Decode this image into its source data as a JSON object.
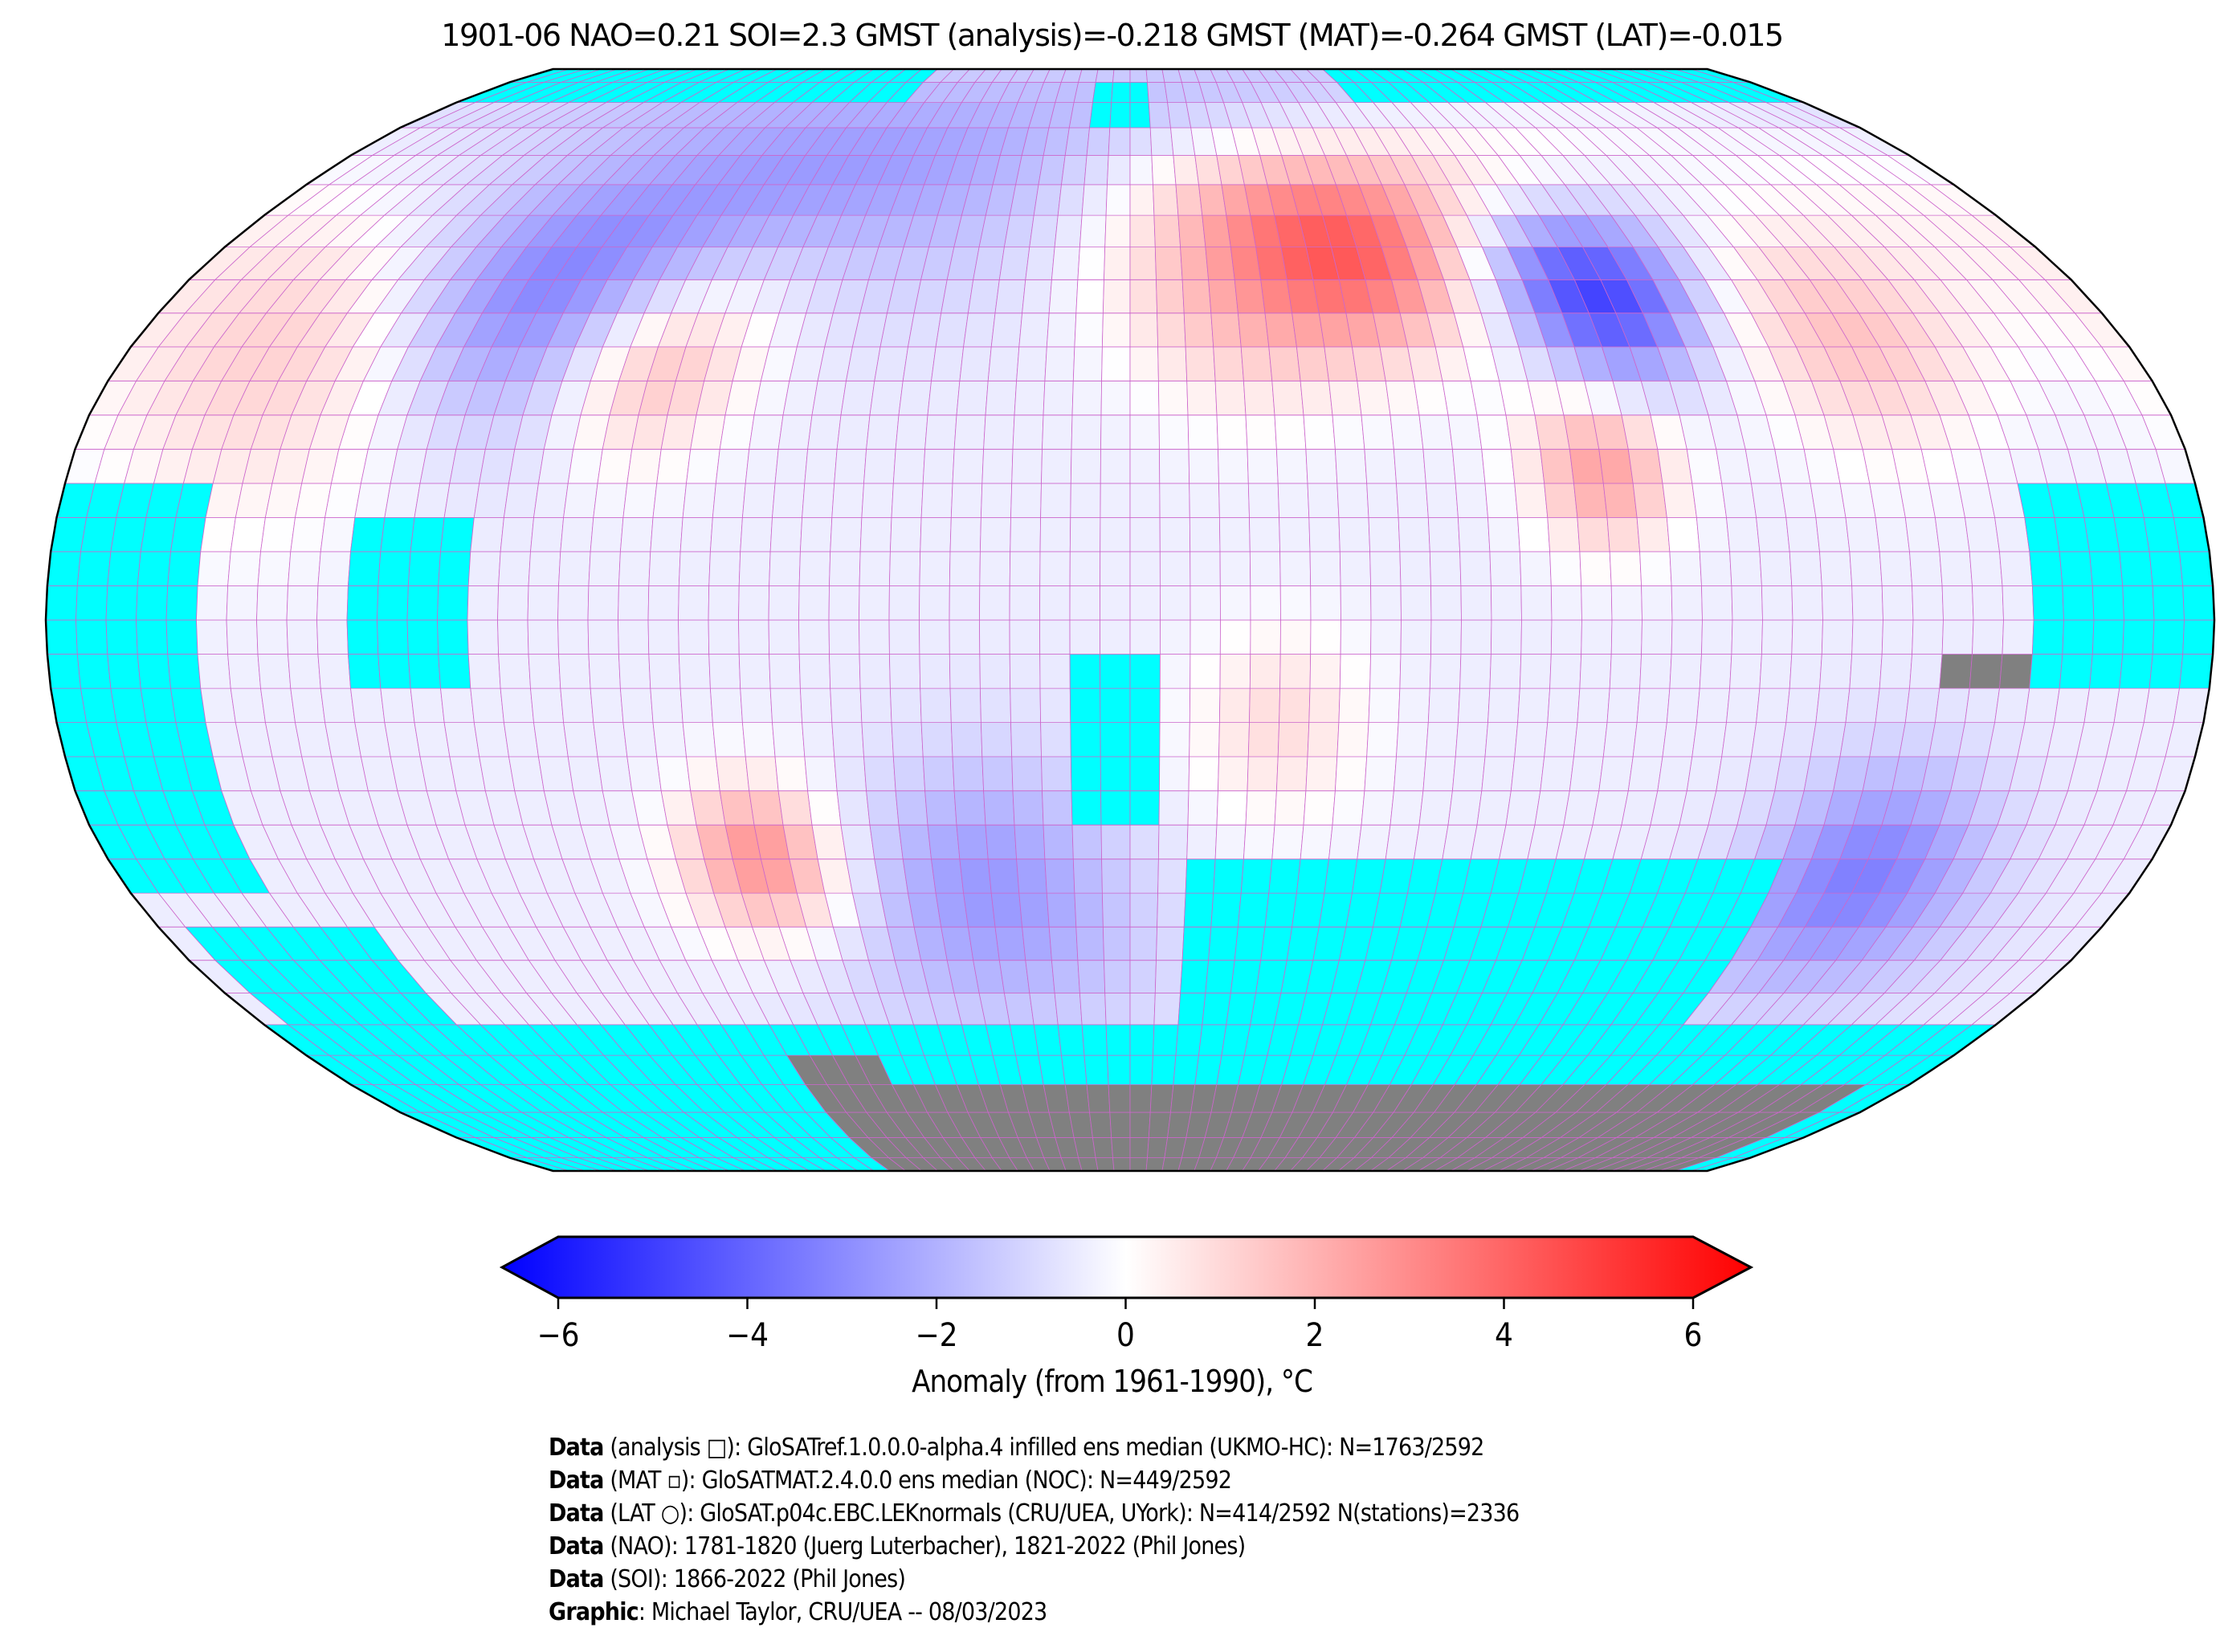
{
  "title": "1901-06 NAO=0.21 SOI=2.3 GMST (analysis)=-0.218 GMST (MAT)=-0.264 GMST (LAT)=-0.015",
  "colorbar": {
    "label": "Anomaly (from 1961-1990), °C",
    "ticks": [
      "−6",
      "−4",
      "−2",
      "0",
      "2",
      "4",
      "6"
    ],
    "range": [
      -6,
      6
    ],
    "colors": {
      "low": "#0000ff",
      "mid": "#ffffff",
      "high": "#ff0000"
    }
  },
  "map": {
    "projection": "Robinson",
    "grid_resolution_deg": 5,
    "missing_color": "#00ffff",
    "land_ice_color": "#808080",
    "gridline_color": "#cc66cc",
    "baseline_anomaly": -0.4,
    "anomaly_centers": [
      {
        "lon": -110,
        "lat": 50,
        "value": -3.2,
        "spread": 14
      },
      {
        "lon": -85,
        "lat": 38,
        "value": 2.2,
        "spread": 10
      },
      {
        "lon": -150,
        "lat": 42,
        "value": 1.6,
        "spread": 18
      },
      {
        "lon": -45,
        "lat": 70,
        "value": -1.6,
        "spread": 16
      },
      {
        "lon": 45,
        "lat": 55,
        "value": 3.6,
        "spread": 11
      },
      {
        "lon": 20,
        "lat": 48,
        "value": 1.8,
        "spread": 12
      },
      {
        "lon": 88,
        "lat": 48,
        "value": -4.2,
        "spread": 9
      },
      {
        "lon": 80,
        "lat": 22,
        "value": 2.6,
        "spread": 8
      },
      {
        "lon": 130,
        "lat": 42,
        "value": 1.8,
        "spread": 12
      },
      {
        "lon": -65,
        "lat": -35,
        "value": 3.0,
        "spread": 8
      },
      {
        "lon": -25,
        "lat": -40,
        "value": -2.0,
        "spread": 14
      },
      {
        "lon": 130,
        "lat": -38,
        "value": -2.6,
        "spread": 12
      },
      {
        "lon": 25,
        "lat": -15,
        "value": 1.2,
        "spread": 10
      }
    ],
    "missing_boxes": [
      {
        "lon": [
          -180,
          -60
        ],
        "lat": [
          82.5,
          90
        ]
      },
      {
        "lon": [
          60,
          180
        ],
        "lat": [
          82.5,
          90
        ]
      },
      {
        "lon": [
          -10,
          5
        ],
        "lat": [
          77.5,
          85
        ]
      },
      {
        "lon": [
          -180,
          180
        ],
        "lat": [
          -90,
          -57.5
        ]
      },
      {
        "lon": [
          10,
          115
        ],
        "lat": [
          -57.5,
          -32.5
        ]
      },
      {
        "lon": [
          -10,
          5
        ],
        "lat": [
          -30,
          -5
        ]
      },
      {
        "lon": [
          150,
          180
        ],
        "lat": [
          -10,
          20
        ]
      },
      {
        "lon": [
          -180,
          -155
        ],
        "lat": [
          -40,
          20
        ]
      },
      {
        "lon": [
          -130,
          -110
        ],
        "lat": [
          -10,
          15
        ]
      },
      {
        "lon": [
          -175,
          -140
        ],
        "lat": [
          -57.5,
          -45
        ]
      }
    ],
    "land_ice_boxes": [
      {
        "lon": [
          -60,
          170
        ],
        "lat": [
          -90,
          -67.5
        ]
      },
      {
        "lon": [
          -75,
          -55
        ],
        "lat": [
          -90,
          -65
        ]
      },
      {
        "lon": [
          135,
          150
        ],
        "lat": [
          -10,
          -2.5
        ]
      }
    ]
  },
  "footer": [
    {
      "bold": "Data",
      "text": " (analysis □): GloSATref.1.0.0.0-alpha.4 infilled ens median (UKMO-HC): N=1763/2592"
    },
    {
      "bold": "Data",
      "text": " (MAT ▫): GloSATMAT.2.4.0.0 ens median (NOC): N=449/2592"
    },
    {
      "bold": "Data",
      "text": " (LAT ○): GloSAT.p04c.EBC.LEKnormals (CRU/UEA, UYork): N=414/2592 N(stations)=2336"
    },
    {
      "bold": "Data",
      "text": " (NAO): 1781-1820 (Juerg Luterbacher), 1821-2022 (Phil Jones)"
    },
    {
      "bold": "Data",
      "text": " (SOI): 1866-2022 (Phil Jones)"
    },
    {
      "bold": "Graphic",
      "text": ": Michael Taylor, CRU/UEA -- 08/03/2023"
    }
  ]
}
